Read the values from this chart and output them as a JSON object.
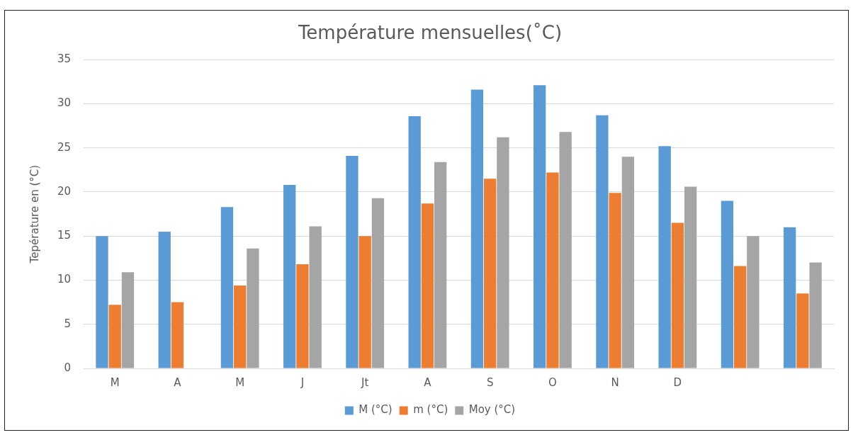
{
  "chart_data": {
    "type": "bar",
    "title": "Température mensuelles(˚C)",
    "ylabel": "Tepérature en (°C)",
    "categories": [
      "M",
      "A",
      "M",
      "J",
      "Jt",
      "A",
      "S",
      "O",
      "N",
      "D",
      null,
      null
    ],
    "series": [
      {
        "name": "M (°C)",
        "color": "#5b9bd5",
        "values": [
          15,
          15.5,
          18.3,
          20.8,
          24.1,
          28.6,
          31.6,
          32.1,
          28.7,
          25.2,
          19,
          16
        ]
      },
      {
        "name": "m (°C)",
        "color": "#ed7d31",
        "values": [
          7.2,
          7.5,
          9.4,
          11.8,
          15,
          18.7,
          21.5,
          22.2,
          19.9,
          16.5,
          11.6,
          8.5
        ]
      },
      {
        "name": "Moy (°C)",
        "color": "#a5a5a5",
        "values": [
          10.9,
          null,
          13.6,
          16.1,
          19.3,
          23.4,
          26.2,
          26.8,
          24,
          20.6,
          15,
          12
        ]
      }
    ],
    "ylim": [
      0,
      35
    ],
    "yticks": [
      0,
      5,
      10,
      15,
      20,
      25,
      30,
      35
    ],
    "grid": "y",
    "legend": "bottom"
  }
}
